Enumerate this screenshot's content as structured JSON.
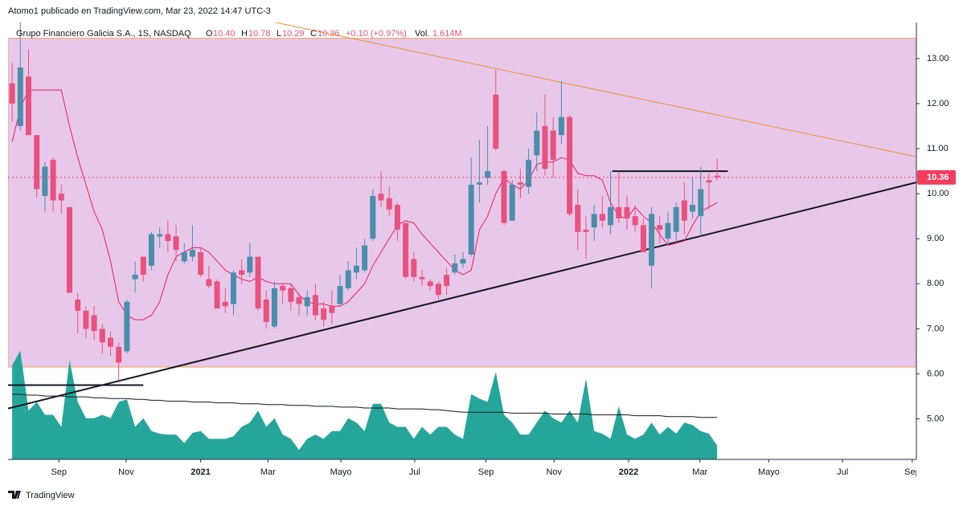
{
  "header": {
    "author_line": "Atomo1 publicado en TradingView.com, Mar 23, 2022 14:47 UTC-3",
    "symbol": "Grupo Financiero Galicia S.A., 1S, NASDAQ",
    "o_label": "O",
    "open": "10.40",
    "h_label": "H",
    "high": "10.78",
    "l_label": "L",
    "low": "10.29",
    "c_label": "C",
    "close": "10.36",
    "change": "+0.10 (+0.97%)",
    "vol_label": "Vol.",
    "volume": "1.614M"
  },
  "footer": {
    "brand": "TradingView"
  },
  "chart_data": {
    "type": "candlestick",
    "up_color": "#4a8eab",
    "down_color": "#e8527f",
    "open": [
      12.45,
      11.5,
      12.6,
      11.3,
      9.95,
      10.75,
      10.0,
      9.7,
      7.65,
      7.4,
      7.3,
      7.0,
      6.8,
      6.6,
      6.5,
      8.1,
      8.6,
      8.4,
      9.05,
      9.1,
      9.05,
      8.5,
      8.6,
      8.7,
      8.1,
      8.05,
      7.6,
      7.55,
      8.3,
      8.25,
      8.6,
      7.65,
      7.05,
      7.95,
      7.9,
      7.7,
      7.5,
      7.75,
      7.45,
      7.5,
      7.55,
      7.9,
      8.25,
      8.3,
      9.0,
      10.0,
      9.9,
      9.75,
      9.35,
      8.55,
      8.15,
      8.05,
      8.0,
      8.2,
      8.25,
      8.45,
      8.65,
      10.2,
      10.35,
      12.2,
      10.5,
      9.4,
      10.25,
      10.15,
      10.85,
      11.5,
      11.4,
      11.3,
      11.7,
      9.75,
      9.2,
      9.25,
      9.55,
      9.3,
      9.7,
      9.7,
      9.5,
      9.3,
      8.4,
      9.3,
      9.0,
      9.15,
      9.85,
      9.6,
      9.5,
      10.3,
      10.4
    ],
    "high": [
      12.9,
      13.8,
      13.2,
      11.3,
      10.7,
      10.8,
      10.2,
      9.7,
      7.8,
      7.5,
      7.5,
      7.1,
      6.95,
      6.7,
      7.65,
      8.5,
      8.6,
      9.15,
      9.25,
      9.4,
      9.3,
      8.9,
      9.3,
      8.8,
      8.4,
      8.1,
      7.9,
      8.3,
      8.55,
      8.9,
      8.6,
      7.85,
      8.05,
      8.0,
      8.0,
      7.8,
      7.85,
      8.0,
      7.6,
      7.85,
      8.2,
      8.5,
      8.8,
      9.0,
      10.1,
      10.5,
      10.15,
      9.8,
      9.35,
      8.7,
      8.3,
      8.1,
      8.05,
      8.35,
      8.65,
      8.7,
      10.8,
      11.2,
      11.5,
      12.75,
      10.55,
      10.3,
      10.55,
      11.0,
      11.8,
      12.2,
      11.7,
      12.5,
      11.75,
      10.1,
      9.5,
      9.75,
      9.95,
      10.5,
      10.5,
      9.95,
      9.75,
      9.45,
      9.7,
      9.5,
      9.6,
      9.8,
      10.25,
      10.35,
      10.6,
      10.45,
      10.78
    ],
    "low": [
      11.6,
      11.4,
      11.3,
      9.9,
      9.6,
      9.6,
      9.55,
      7.8,
      6.9,
      6.8,
      6.75,
      6.45,
      6.4,
      5.85,
      6.45,
      7.8,
      8.05,
      8.3,
      8.8,
      8.7,
      8.5,
      8.45,
      8.5,
      8.15,
      7.9,
      7.45,
      7.35,
      7.3,
      8.0,
      8.15,
      7.4,
      7.0,
      7.0,
      7.55,
      7.4,
      7.3,
      7.3,
      7.2,
      7.05,
      7.1,
      7.5,
      7.85,
      8.1,
      8.25,
      8.95,
      9.7,
      9.5,
      8.95,
      8.1,
      8.05,
      7.95,
      7.85,
      7.65,
      7.75,
      8.2,
      8.35,
      8.6,
      9.8,
      10.2,
      10.95,
      9.3,
      9.4,
      9.9,
      10.0,
      10.5,
      10.4,
      10.35,
      11.1,
      9.5,
      8.75,
      8.55,
      8.95,
      9.25,
      9.1,
      9.35,
      9.2,
      9.15,
      8.75,
      7.9,
      8.9,
      8.85,
      8.9,
      9.1,
      9.45,
      9.05,
      9.65,
      10.29
    ],
    "close": [
      12.0,
      12.8,
      11.3,
      10.1,
      10.6,
      9.85,
      9.85,
      7.8,
      7.4,
      7.0,
      6.95,
      6.7,
      6.6,
      6.25,
      7.6,
      8.2,
      8.2,
      9.1,
      9.1,
      8.95,
      8.75,
      8.7,
      8.75,
      8.2,
      7.95,
      7.45,
      7.5,
      8.25,
      8.2,
      8.6,
      7.45,
      7.15,
      7.9,
      7.85,
      7.6,
      7.55,
      7.7,
      7.3,
      7.2,
      7.35,
      7.95,
      8.3,
      8.4,
      8.85,
      9.95,
      9.85,
      9.65,
      9.2,
      8.15,
      8.15,
      8.1,
      7.95,
      7.75,
      7.95,
      8.45,
      8.55,
      10.2,
      10.25,
      10.5,
      11.0,
      9.35,
      10.2,
      10.2,
      10.75,
      11.4,
      10.55,
      10.75,
      11.7,
      9.55,
      9.15,
      9.15,
      9.55,
      9.4,
      9.7,
      9.45,
      9.45,
      9.3,
      8.7,
      9.55,
      9.2,
      9.35,
      9.7,
      9.4,
      9.75,
      10.1,
      10.25,
      10.36
    ],
    "ma": {
      "color": "#e91e63",
      "values": [
        11.15,
        11.9,
        12.3,
        12.3,
        12.3,
        12.3,
        12.3,
        11.5,
        10.8,
        10.2,
        9.6,
        9.2,
        8.5,
        7.6,
        7.3,
        7.2,
        7.2,
        7.3,
        7.6,
        8.2,
        8.6,
        8.7,
        8.8,
        8.8,
        8.7,
        8.5,
        8.3,
        8.2,
        8.1,
        8.05,
        8.15,
        8.05,
        8.0,
        8.0,
        8.0,
        7.75,
        7.6,
        7.55,
        7.55,
        7.5,
        7.5,
        7.6,
        7.8,
        8.0,
        8.4,
        8.7,
        9.0,
        9.3,
        9.4,
        9.35,
        9.1,
        8.9,
        8.7,
        8.5,
        8.3,
        8.2,
        8.3,
        9.2,
        9.5,
        10.0,
        10.35,
        10.2,
        10.1,
        10.3,
        10.65,
        10.7,
        10.7,
        10.8,
        10.75,
        10.45,
        10.4,
        10.4,
        10.3,
        9.8,
        9.5,
        9.45,
        9.7,
        9.5,
        9.35,
        9.1,
        8.85,
        8.9,
        8.95,
        9.3,
        9.6,
        9.7,
        9.8
      ]
    },
    "volume": {
      "color": "#26a69a",
      "vlim": [
        0,
        51
      ],
      "values": [
        11,
        12.7,
        5.7,
        6.7,
        5.2,
        5.2,
        3.8,
        11.6,
        6.7,
        4.8,
        4.8,
        5.2,
        4.8,
        6.7,
        7.0,
        3.8,
        4.8,
        3.3,
        3.0,
        2.9,
        2.9,
        1.9,
        3.1,
        3.3,
        2.4,
        2.4,
        2.4,
        2.7,
        3.8,
        4.3,
        5.7,
        3.8,
        4.8,
        2.9,
        2.4,
        1.1,
        2.4,
        2.9,
        2.4,
        3.3,
        3.3,
        4.8,
        4.3,
        3.3,
        6.5,
        6.5,
        4.3,
        3.8,
        3.8,
        2.4,
        3.8,
        2.9,
        3.8,
        3.8,
        2.9,
        2.4,
        7.6,
        7.1,
        6.7,
        10.2,
        5.2,
        4.3,
        2.9,
        2.9,
        4.3,
        5.7,
        4.8,
        4.3,
        5.7,
        4.3,
        9.4,
        3.3,
        3.0,
        2.4,
        6.2,
        2.9,
        2.4,
        2.9,
        4.3,
        2.9,
        3.8,
        3.0,
        4.3,
        4.0,
        3.3,
        3.0,
        1.614
      ]
    },
    "volume_ma": {
      "color": "#131722",
      "values": [
        7.6,
        7.6,
        7.5,
        7.5,
        7.4,
        7.4,
        7.4,
        7.3,
        7.3,
        7.3,
        7.2,
        7.2,
        7.1,
        7.1,
        7.1,
        7.0,
        7.0,
        6.9,
        6.9,
        6.8,
        6.8,
        6.8,
        6.7,
        6.7,
        6.7,
        6.6,
        6.6,
        6.6,
        6.5,
        6.5,
        6.5,
        6.4,
        6.4,
        6.4,
        6.3,
        6.3,
        6.3,
        6.2,
        6.2,
        6.2,
        6.1,
        6.1,
        6.1,
        6.0,
        6.0,
        6.0,
        6.0,
        5.9,
        5.9,
        5.9,
        5.9,
        5.8,
        5.8,
        5.7,
        5.6,
        5.5,
        5.5,
        5.5,
        5.5,
        5.5,
        5.5,
        5.4,
        5.4,
        5.4,
        5.4,
        5.4,
        5.3,
        5.3,
        5.3,
        5.3,
        5.3,
        5.2,
        5.2,
        5.2,
        5.2,
        5.2,
        5.1,
        5.1,
        5.1,
        5.1,
        5.0,
        5.0,
        5.0,
        5.0,
        4.9,
        4.9,
        4.9
      ]
    },
    "xlim": [
      -0.5,
      110.3
    ],
    "xticks": [
      {
        "value": 5.7,
        "label": "Sep"
      },
      {
        "value": 13.9,
        "label": "Nov"
      },
      {
        "value": 23.0,
        "label": "2021"
      },
      {
        "value": 31.2,
        "label": "Mar"
      },
      {
        "value": 40.1,
        "label": "Mayo"
      },
      {
        "value": 49.1,
        "label": "Jul"
      },
      {
        "value": 57.8,
        "label": "Sep"
      },
      {
        "value": 66.1,
        "label": "Nov"
      },
      {
        "value": 75.2,
        "label": "2022"
      },
      {
        "value": 83.9,
        "label": "Mar"
      },
      {
        "value": 92.3,
        "label": "Mayo"
      },
      {
        "value": 101.3,
        "label": "Jul"
      },
      {
        "value": 109.8,
        "label": "Sep"
      }
    ],
    "ylim": [
      4.1,
      13.8
    ],
    "yticks": [
      {
        "value": 5,
        "label": "5.00"
      },
      {
        "value": 6,
        "label": "6.00"
      },
      {
        "value": 7,
        "label": "7.00"
      },
      {
        "value": 8,
        "label": "8.00"
      },
      {
        "value": 9,
        "label": "9.00"
      },
      {
        "value": 10,
        "label": "10.00"
      },
      {
        "value": 11,
        "label": "11.00"
      },
      {
        "value": 12,
        "label": "12.00"
      },
      {
        "value": 13,
        "label": "13.00"
      }
    ],
    "range_box": {
      "ylim": [
        6.15,
        13.45
      ],
      "fill": "#e8c8ea",
      "border": "#f5a05a"
    },
    "trendlines": [
      {
        "x": [
          31.9,
          110.3
        ],
        "y": [
          13.81,
          10.82
        ],
        "color": "#f0922e"
      },
      {
        "x": [
          -0.5,
          110.3
        ],
        "y": [
          5.23,
          10.25
        ],
        "color": "#131722"
      },
      {
        "x": [
          73.2,
          87.3
        ],
        "y": [
          10.5,
          10.5
        ],
        "color": "#131722"
      },
      {
        "x": [
          -0.5,
          16
        ],
        "y": [
          5.75,
          5.75
        ],
        "color": "#131722"
      }
    ],
    "last_price": 10.36,
    "last_price_color": "#f23d5e"
  }
}
